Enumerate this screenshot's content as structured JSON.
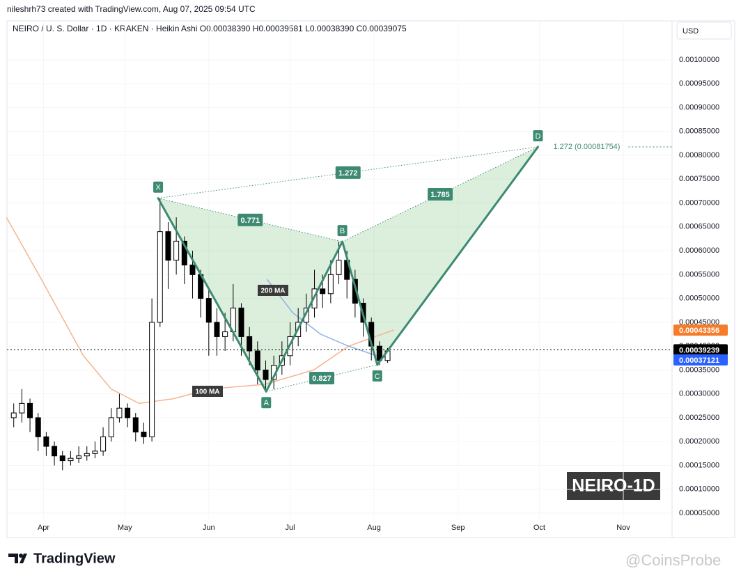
{
  "chart_data": {
    "type": "candlestick",
    "attribution": "nileshrh73 created with TradingView.com, Aug 07, 2025 09:54 UTC",
    "title": "NEIRO / U. S. Dollar · 1D · KRAKEN · Heikin Ashi  O0.00038390  H0.00039581  L0.00038390  C0.00039075",
    "currency": "USD",
    "badge": "NEIRO-1D",
    "brand": "TradingView",
    "watermark": "@CoinsProbe",
    "xlim": [
      77.5,
      323
    ],
    "xticks": [
      {
        "value": 91,
        "label": "Apr"
      },
      {
        "value": 121,
        "label": "May"
      },
      {
        "value": 152,
        "label": "Jun"
      },
      {
        "value": 182,
        "label": "Jul"
      },
      {
        "value": 213,
        "label": "Aug"
      },
      {
        "value": 244,
        "label": "Sep"
      },
      {
        "value": 274,
        "label": "Oct"
      },
      {
        "value": 305,
        "label": "Nov"
      }
    ],
    "ylim": [
      1.8e-06,
      0.0010817
    ],
    "yticks": [
      {
        "value": 5e-05,
        "label": "0.00005000"
      },
      {
        "value": 0.0001,
        "label": "0.00010000"
      },
      {
        "value": 0.00015,
        "label": "0.00015000"
      },
      {
        "value": 0.0002,
        "label": "0.00020000"
      },
      {
        "value": 0.00025,
        "label": "0.00025000"
      },
      {
        "value": 0.0003,
        "label": "0.00030000"
      },
      {
        "value": 0.00035,
        "label": "0.00035000"
      },
      {
        "value": 0.0004,
        "label": "0.00040000"
      },
      {
        "value": 0.00045,
        "label": "0.00045000"
      },
      {
        "value": 0.0005,
        "label": "0.00050000"
      },
      {
        "value": 0.00055,
        "label": "0.00055000"
      },
      {
        "value": 0.0006,
        "label": "0.00060000"
      },
      {
        "value": 0.00065,
        "label": "0.00065000"
      },
      {
        "value": 0.0007,
        "label": "0.00070000"
      },
      {
        "value": 0.00075,
        "label": "0.00075000"
      },
      {
        "value": 0.0008,
        "label": "0.00080000"
      },
      {
        "value": 0.00085,
        "label": "0.00085000"
      },
      {
        "value": 0.0009,
        "label": "0.00090000"
      },
      {
        "value": 0.00095,
        "label": "0.00095000"
      },
      {
        "value": 0.001,
        "label": "0.00100000"
      }
    ],
    "grid": true,
    "candles": {
      "up_color": "#ffffff",
      "down_color": "#000000",
      "border_color": "#000000",
      "x": [
        80,
        83,
        86,
        89,
        92,
        95,
        98,
        101,
        104,
        107,
        110,
        113,
        116,
        119,
        122,
        125,
        128,
        131,
        134,
        137,
        140,
        143,
        146,
        149,
        152,
        155,
        158,
        161,
        164,
        167,
        170,
        173,
        176,
        179,
        182,
        185,
        188,
        191,
        194,
        197,
        200,
        203,
        206,
        209,
        212,
        215,
        218
      ],
      "open": [
        0.00025,
        0.00026,
        0.00028,
        0.00025,
        0.00021,
        0.00019,
        0.00017,
        0.00016,
        0.000165,
        0.00017,
        0.000175,
        0.00018,
        0.00021,
        0.00025,
        0.00027,
        0.00025,
        0.00022,
        0.00021,
        0.00045,
        0.00064,
        0.00058,
        0.00062,
        0.00057,
        0.00055,
        0.0005,
        0.00045,
        0.00042,
        0.00043,
        0.00048,
        0.00042,
        0.00039,
        0.00035,
        0.00033,
        0.00036,
        0.00038,
        0.00042,
        0.00045,
        0.00048,
        0.00052,
        0.00051,
        0.00055,
        0.00058,
        0.00054,
        0.00049,
        0.00045,
        0.0004,
        0.00037
      ],
      "close": [
        0.00026,
        0.00028,
        0.00025,
        0.00021,
        0.00019,
        0.00017,
        0.00016,
        0.000165,
        0.00017,
        0.000175,
        0.00018,
        0.00021,
        0.00025,
        0.00027,
        0.00025,
        0.00022,
        0.00021,
        0.00045,
        0.00064,
        0.00058,
        0.00062,
        0.00057,
        0.00055,
        0.0005,
        0.00045,
        0.00042,
        0.00043,
        0.00048,
        0.00042,
        0.00039,
        0.00035,
        0.00033,
        0.00036,
        0.00038,
        0.00042,
        0.00045,
        0.00048,
        0.00052,
        0.00051,
        0.00055,
        0.00058,
        0.00054,
        0.00049,
        0.00045,
        0.0004,
        0.00037,
        0.00039
      ],
      "high": [
        0.00028,
        0.00031,
        0.00029,
        0.00026,
        0.00022,
        0.0002,
        0.00018,
        0.00018,
        0.00019,
        0.00019,
        0.0002,
        0.00023,
        0.00027,
        0.0003,
        0.00028,
        0.00026,
        0.00024,
        0.0005,
        0.00071,
        0.00066,
        0.00067,
        0.00063,
        0.0006,
        0.00056,
        0.00052,
        0.00048,
        0.00047,
        0.00053,
        0.00049,
        0.00044,
        0.00041,
        0.00037,
        0.00038,
        0.00041,
        0.00045,
        0.00048,
        0.00051,
        0.00056,
        0.00055,
        0.00058,
        0.000619,
        0.0006,
        0.00056,
        0.0005,
        0.00046,
        0.00041,
        0.000396
      ],
      "low": [
        0.00023,
        0.00024,
        0.00022,
        0.00018,
        0.00017,
        0.00015,
        0.00014,
        0.00015,
        0.000155,
        0.00016,
        0.000165,
        0.00017,
        0.0002,
        0.00024,
        0.00023,
        0.0002,
        0.000195,
        0.0002,
        0.00044,
        0.00052,
        0.00055,
        0.00053,
        0.0005,
        0.00046,
        0.00038,
        0.00038,
        0.00039,
        0.00041,
        0.00038,
        0.00036,
        0.00032,
        0.000305,
        0.00031,
        0.00034,
        0.00036,
        0.0004,
        0.00043,
        0.00046,
        0.00048,
        0.00049,
        0.00053,
        0.0005,
        0.00046,
        0.00042,
        0.00037,
        0.00036,
        0.000365
      ]
    },
    "series": [
      {
        "name": "100 MA",
        "color": "#f4b48f",
        "x": [
          77.3,
          90.2,
          105.7,
          116,
          126.3,
          139.2,
          152.1,
          172.7,
          190.7,
          203.6,
          220.4
        ],
        "values": [
          0.00067,
          0.00054,
          0.00038,
          0.00031,
          0.00028,
          0.00029,
          0.00031,
          0.00032,
          0.00035,
          0.0004,
          0.000434
        ]
      },
      {
        "name": "200 MA",
        "color": "#8fb2e6",
        "x": [
          173.5,
          183,
          193.3,
          203.6,
          213.9,
          219
        ],
        "values": [
          0.00054,
          0.00047,
          0.000425,
          0.0004,
          0.00038,
          0.000375
        ]
      }
    ],
    "pattern": {
      "color": "#3d8a72",
      "points": [
        {
          "label": "X",
          "x": 133.3,
          "y": 0.00071
        },
        {
          "label": "A",
          "x": 173.2,
          "y": 0.000305
        },
        {
          "label": "B",
          "x": 201.3,
          "y": 0.000619
        },
        {
          "label": "C",
          "x": 214.2,
          "y": 0.000361
        },
        {
          "label": "D",
          "x": 273.5,
          "y": 0.00081754
        }
      ],
      "ratios": [
        "0.771",
        "0.827",
        "1.785",
        "1.272"
      ],
      "target_label": "1.272 (0.00081754)"
    },
    "price_tags": [
      {
        "value": 0.00043356,
        "color": "#f57c2b"
      },
      {
        "value": 0.00039239,
        "color": "#000000"
      },
      {
        "value": 0.00037121,
        "color": "#2962ff"
      }
    ]
  }
}
